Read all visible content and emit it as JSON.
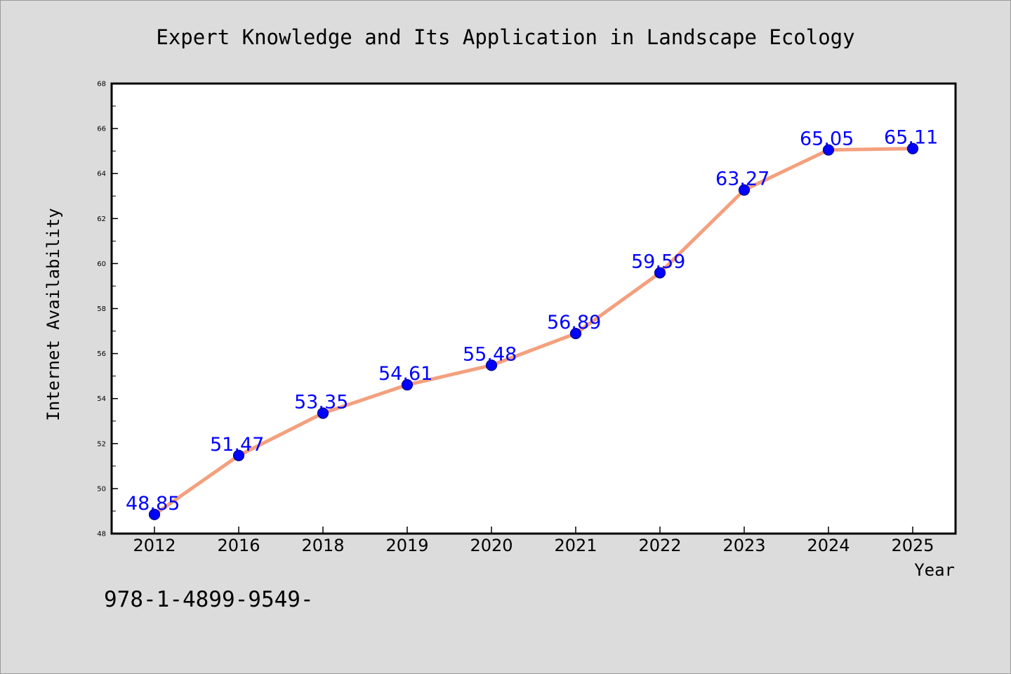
{
  "chart_data": {
    "type": "line",
    "title": "Expert Knowledge and Its Application in Landscape Ecology",
    "xlabel": "Year",
    "ylabel": "Internet Availability",
    "categories": [
      "2012",
      "2016",
      "2018",
      "2019",
      "2020",
      "2021",
      "2022",
      "2023",
      "2024",
      "2025"
    ],
    "series": [
      {
        "values": [
          48.85,
          51.47,
          53.35,
          54.61,
          55.48,
          56.89,
          59.59,
          63.27,
          65.05,
          65.11
        ]
      }
    ],
    "data_labels": [
      "48.85",
      "51.47",
      "53.35",
      "54.61",
      "55.48",
      "56.89",
      "59.59",
      "63.27",
      "65.05",
      "65.11"
    ],
    "ylim": [
      48,
      68
    ],
    "yticks": [
      "48",
      "50",
      "52",
      "54",
      "56",
      "58",
      "60",
      "62",
      "64",
      "66",
      "68"
    ],
    "grid": false,
    "colors": {
      "line": "#f4a07e",
      "marker": "#0000ff",
      "marker_edge": "#000080",
      "data_label": "#0000ff",
      "background": "#dcdcdc",
      "plot_background": "#ffffff"
    }
  },
  "footer_text": "978-1-4899-9549-"
}
